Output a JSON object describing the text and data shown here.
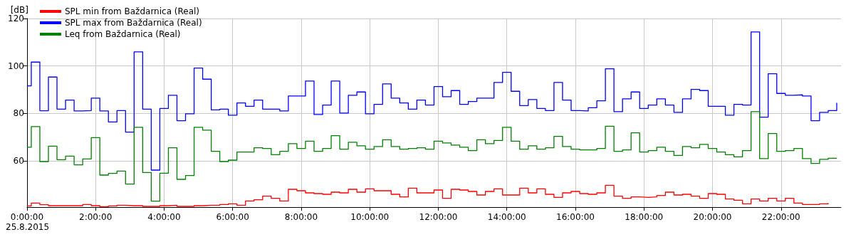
{
  "chart_data": {
    "type": "step",
    "ylabel": "[dB]",
    "xlabel": "25.8.2015",
    "x": [
      0,
      0.125,
      0.375,
      0.625,
      0.875,
      1.125,
      1.375,
      1.625,
      1.875,
      2.125,
      2.375,
      2.625,
      2.875,
      3.125,
      3.375,
      3.625,
      3.875,
      4.125,
      4.375,
      4.625,
      4.875,
      5.125,
      5.375,
      5.625,
      5.875,
      6.125,
      6.375,
      6.625,
      6.875,
      7.125,
      7.375,
      7.625,
      7.875,
      8.125,
      8.375,
      8.625,
      8.875,
      9.125,
      9.375,
      9.625,
      9.875,
      10.125,
      10.375,
      10.625,
      10.875,
      11.125,
      11.375,
      11.625,
      11.875,
      12.125,
      12.375,
      12.625,
      12.875,
      13.125,
      13.375,
      13.625,
      13.875,
      14.125,
      14.375,
      14.625,
      14.875,
      15.125,
      15.375,
      15.625,
      15.875,
      16.125,
      16.375,
      16.625,
      16.875,
      17.125,
      17.375,
      17.625,
      17.875,
      18.125,
      18.375,
      18.625,
      18.875,
      19.125,
      19.375,
      19.625,
      19.875,
      20.125,
      20.375,
      20.625,
      20.875,
      21.125,
      21.375,
      21.625,
      21.875,
      22.125,
      22.375,
      22.625,
      22.875,
      23.125,
      23.375,
      23.625
    ],
    "series": [
      {
        "name": "SPL min from Baždarnica (Real)",
        "color": "#ff0000",
        "values": [
          41.0,
          42.2,
          41.5,
          41.1,
          41.1,
          41.1,
          41.1,
          41.6,
          41.1,
          40.7,
          41.0,
          41.3,
          41.1,
          41.1,
          40.8,
          40.8,
          41.1,
          41.3,
          40.8,
          40.8,
          41.1,
          41.3,
          41.3,
          41.6,
          41.9,
          41.3,
          43.1,
          43.6,
          45.1,
          44.2,
          43.1,
          48.0,
          47.4,
          46.5,
          46.2,
          45.9,
          46.8,
          46.5,
          48.0,
          46.8,
          48.2,
          47.4,
          47.4,
          45.9,
          44.8,
          48.5,
          46.5,
          46.5,
          47.7,
          44.2,
          48.0,
          47.7,
          47.1,
          45.6,
          47.1,
          48.2,
          45.6,
          45.6,
          48.5,
          46.5,
          48.2,
          45.9,
          44.6,
          46.5,
          47.1,
          46.2,
          45.9,
          46.5,
          49.7,
          45.1,
          44.2,
          44.8,
          44.6,
          44.8,
          45.4,
          46.8,
          45.6,
          45.9,
          45.1,
          44.2,
          46.2,
          45.9,
          43.9,
          43.4,
          41.9,
          43.9,
          43.1,
          44.2,
          43.1,
          44.2,
          42.2,
          41.6,
          41.6,
          41.9,
          42.2,
          null
        ]
      },
      {
        "name": "SPL max from Baždarnica (Real)",
        "color": "#0000ff",
        "values": [
          91.6,
          101.6,
          81.1,
          95.3,
          81.8,
          85.6,
          81.0,
          81.2,
          86.4,
          81.0,
          76.4,
          81.2,
          72.1,
          105.9,
          81.8,
          56.1,
          82.1,
          87.6,
          76.9,
          79.8,
          99.1,
          94.4,
          81.5,
          81.8,
          79.2,
          84.4,
          83.0,
          85.6,
          81.8,
          81.8,
          81.0,
          87.3,
          87.3,
          93.6,
          79.5,
          83.5,
          93.6,
          80.1,
          87.6,
          89.0,
          79.8,
          83.8,
          92.4,
          86.4,
          84.4,
          81.8,
          85.6,
          83.5,
          91.3,
          87.0,
          89.6,
          83.8,
          85.0,
          86.4,
          86.4,
          93.0,
          97.3,
          89.3,
          83.3,
          85.8,
          82.1,
          81.2,
          93.0,
          85.6,
          81.2,
          81.0,
          82.4,
          85.3,
          98.8,
          80.7,
          86.1,
          89.0,
          82.1,
          83.5,
          86.1,
          83.5,
          80.4,
          86.1,
          90.1,
          89.6,
          83.0,
          83.0,
          79.2,
          83.8,
          83.5,
          114.3,
          78.4,
          96.7,
          88.4,
          87.6,
          87.8,
          87.3,
          76.9,
          80.4,
          81.2,
          84.4
        ]
      },
      {
        "name": "Leq from Baždarnica (Real)",
        "color": "#008000",
        "values": [
          65.7,
          74.4,
          59.7,
          66.2,
          60.5,
          62.0,
          58.3,
          60.8,
          69.8,
          54.0,
          54.7,
          55.7,
          50.2,
          74.1,
          55.1,
          43.0,
          54.8,
          65.5,
          52.2,
          53.8,
          74.1,
          72.9,
          64.0,
          59.7,
          60.3,
          63.7,
          63.7,
          65.5,
          65.2,
          62.6,
          64.0,
          67.2,
          65.2,
          68.3,
          64.0,
          65.2,
          70.6,
          64.9,
          67.8,
          66.3,
          64.9,
          66.0,
          68.9,
          66.0,
          64.9,
          65.2,
          65.5,
          64.9,
          68.3,
          67.5,
          66.6,
          65.7,
          64.3,
          68.9,
          67.2,
          68.6,
          74.1,
          68.3,
          64.9,
          66.3,
          64.9,
          65.5,
          70.3,
          66.0,
          64.9,
          64.6,
          64.6,
          65.2,
          74.6,
          64.0,
          64.6,
          71.8,
          63.7,
          64.3,
          65.7,
          64.0,
          62.3,
          66.0,
          65.5,
          66.9,
          65.2,
          63.7,
          62.6,
          61.7,
          64.3,
          80.7,
          60.9,
          71.5,
          64.0,
          64.3,
          65.2,
          60.9,
          58.9,
          60.6,
          61.1,
          60.9
        ]
      }
    ],
    "xlim": [
      0,
      23.75
    ],
    "xticks": [
      {
        "value": 0,
        "label": "0:00:00"
      },
      {
        "value": 2,
        "label": "2:00:00"
      },
      {
        "value": 4,
        "label": "4:00:00"
      },
      {
        "value": 6,
        "label": "6:00:00"
      },
      {
        "value": 8,
        "label": "8:00:00"
      },
      {
        "value": 10,
        "label": "10:00:00"
      },
      {
        "value": 12,
        "label": "12:00:00"
      },
      {
        "value": 14,
        "label": "14:00:00"
      },
      {
        "value": 16,
        "label": "16:00:00"
      },
      {
        "value": 18,
        "label": "18:00:00"
      },
      {
        "value": 20,
        "label": "20:00:00"
      },
      {
        "value": 22,
        "label": "22:00:00"
      }
    ],
    "ylim": [
      40.5,
      120
    ],
    "yticks": [
      60,
      80,
      100,
      120
    ],
    "grid": true,
    "legend": "top left",
    "line_style": "solid"
  }
}
